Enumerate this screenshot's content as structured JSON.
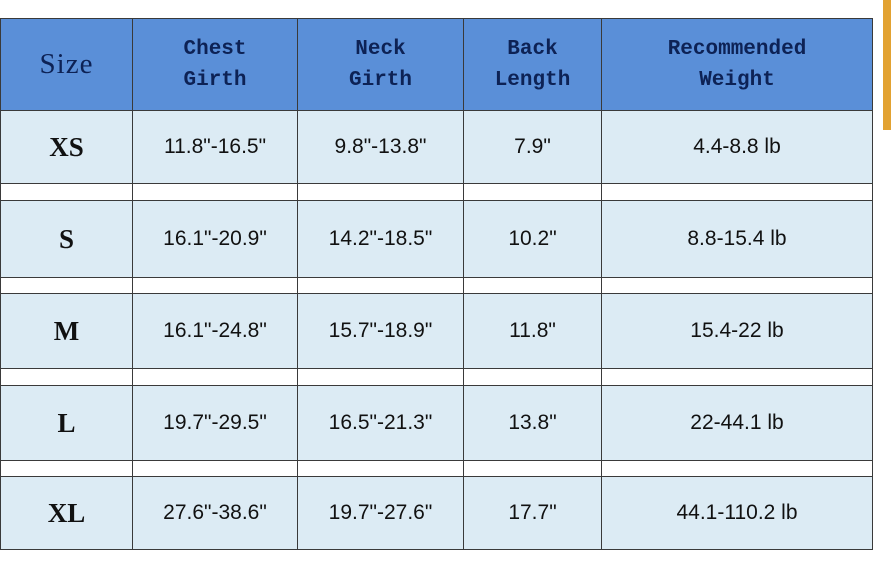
{
  "table": {
    "header": [
      "Size",
      "Chest\nGirth",
      "Neck\nGirth",
      "Back\nLength",
      "Recommended\nWeight"
    ],
    "rows": [
      [
        "XS",
        "11.8\"-16.5\"",
        "9.8\"-13.8\"",
        "7.9\"",
        "4.4-8.8 lb"
      ],
      [
        "S",
        "16.1\"-20.9\"",
        "14.2\"-18.5\"",
        "10.2\"",
        "8.8-15.4 lb"
      ],
      [
        "M",
        "16.1\"-24.8\"",
        "15.7\"-18.9\"",
        "11.8\"",
        "15.4-22 lb"
      ],
      [
        "L",
        "19.7\"-29.5\"",
        "16.5\"-21.3\"",
        "13.8\"",
        "22-44.1 lb"
      ],
      [
        "XL",
        "27.6\"-38.6\"",
        "19.7\"-27.6\"",
        "17.7\"",
        "44.1-110.2 lb"
      ]
    ]
  }
}
